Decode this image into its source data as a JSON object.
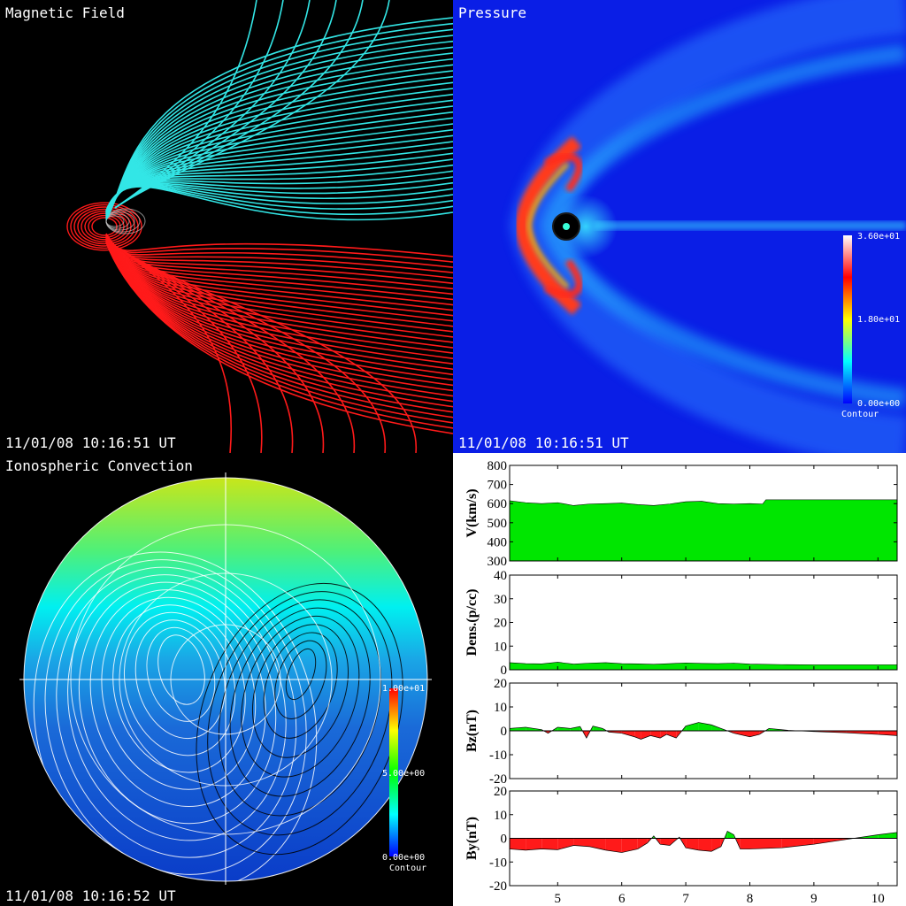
{
  "panels": {
    "magnetic": {
      "title": "Magnetic Field",
      "timestamp": "11/01/08 10:16:51 UT"
    },
    "pressure": {
      "title": "Pressure",
      "timestamp": "11/01/08 10:16:51 UT",
      "colorbar": {
        "max": "3.60e+01",
        "mid": "1.80e+01",
        "min": "0.00e+00",
        "label": "Contour"
      }
    },
    "ionosphere": {
      "title": "Ionospheric Convection",
      "timestamp": "11/01/08 10:16:52 UT",
      "colorbar": {
        "max": "1.00e+01",
        "mid": "5.00e+00",
        "min": "0.00e+00",
        "label": "Contour"
      }
    }
  },
  "colors": {
    "north_field": "#33e6e6",
    "south_field": "#ff1a1a",
    "fill_positive": "#00e600",
    "fill_negative": "#ff1a1a"
  },
  "chart_data": [
    {
      "type": "area",
      "ylabel": "V(km/s)",
      "ylim": [
        300,
        800
      ],
      "yticks": [
        300,
        400,
        500,
        600,
        700,
        800
      ],
      "x": [
        4.25,
        4.5,
        4.75,
        5.0,
        5.25,
        5.5,
        5.75,
        6.0,
        6.25,
        6.5,
        6.75,
        7.0,
        7.25,
        7.5,
        7.75,
        8.0,
        8.2,
        8.25,
        8.5,
        9.0,
        9.5,
        10.0,
        10.3
      ],
      "values": [
        615,
        605,
        600,
        605,
        590,
        598,
        600,
        603,
        595,
        590,
        598,
        610,
        612,
        600,
        598,
        600,
        598,
        620,
        620,
        620,
        620,
        620,
        620
      ]
    },
    {
      "type": "area",
      "ylabel": "Dens.(p/cc)",
      "ylim": [
        0,
        40
      ],
      "yticks": [
        0,
        10,
        20,
        30,
        40
      ],
      "x": [
        4.25,
        4.5,
        4.75,
        5.0,
        5.25,
        5.5,
        5.75,
        6.0,
        6.25,
        6.5,
        6.75,
        7.0,
        7.25,
        7.5,
        7.75,
        8.0,
        8.5,
        9.0,
        9.5,
        10.0,
        10.3
      ],
      "values": [
        3.0,
        2.6,
        2.5,
        3.2,
        2.4,
        2.8,
        3.0,
        2.6,
        2.5,
        2.3,
        2.6,
        2.9,
        2.7,
        2.6,
        2.8,
        2.4,
        2.2,
        2.1,
        2.1,
        2.1,
        2.1
      ]
    },
    {
      "type": "area",
      "ylabel": "Bz(nT)",
      "ylim": [
        -20,
        20
      ],
      "yticks": [
        -20,
        -10,
        0,
        10,
        20
      ],
      "x": [
        4.25,
        4.5,
        4.75,
        4.85,
        5.0,
        5.2,
        5.35,
        5.45,
        5.55,
        5.7,
        5.8,
        6.0,
        6.2,
        6.3,
        6.45,
        6.6,
        6.7,
        6.85,
        7.0,
        7.2,
        7.4,
        7.55,
        7.75,
        8.0,
        8.15,
        8.3,
        8.6,
        9.0,
        9.5,
        10.0,
        10.3
      ],
      "values": [
        1.0,
        1.5,
        0.5,
        -1.0,
        1.5,
        1.0,
        1.8,
        -3.0,
        2.0,
        1.0,
        -0.5,
        -1.0,
        -2.5,
        -3.5,
        -2.0,
        -3.0,
        -1.5,
        -3.0,
        2.0,
        3.5,
        2.5,
        1.0,
        -1.0,
        -2.5,
        -1.5,
        1.0,
        0.2,
        -0.3,
        -0.8,
        -1.5,
        -2.0
      ]
    },
    {
      "type": "area",
      "ylabel": "By(nT)",
      "ylim": [
        -20,
        20
      ],
      "yticks": [
        -20,
        -10,
        0,
        10,
        20
      ],
      "xlim": [
        4.25,
        10.3
      ],
      "xticks": [
        5,
        6,
        7,
        8,
        9,
        10
      ],
      "x": [
        4.25,
        4.5,
        4.75,
        5.0,
        5.25,
        5.5,
        5.75,
        6.0,
        6.25,
        6.4,
        6.5,
        6.6,
        6.75,
        6.9,
        7.0,
        7.2,
        7.4,
        7.55,
        7.65,
        7.75,
        7.85,
        8.0,
        8.5,
        9.0,
        9.5,
        10.0,
        10.3
      ],
      "values": [
        -4.5,
        -5.0,
        -4.5,
        -4.8,
        -3.0,
        -3.5,
        -5.0,
        -6.0,
        -4.5,
        -2.0,
        1.0,
        -2.5,
        -3.0,
        0.5,
        -4.0,
        -5.0,
        -5.5,
        -3.5,
        3.0,
        1.5,
        -4.5,
        -4.5,
        -4.0,
        -2.5,
        -0.5,
        1.5,
        2.5
      ]
    }
  ]
}
